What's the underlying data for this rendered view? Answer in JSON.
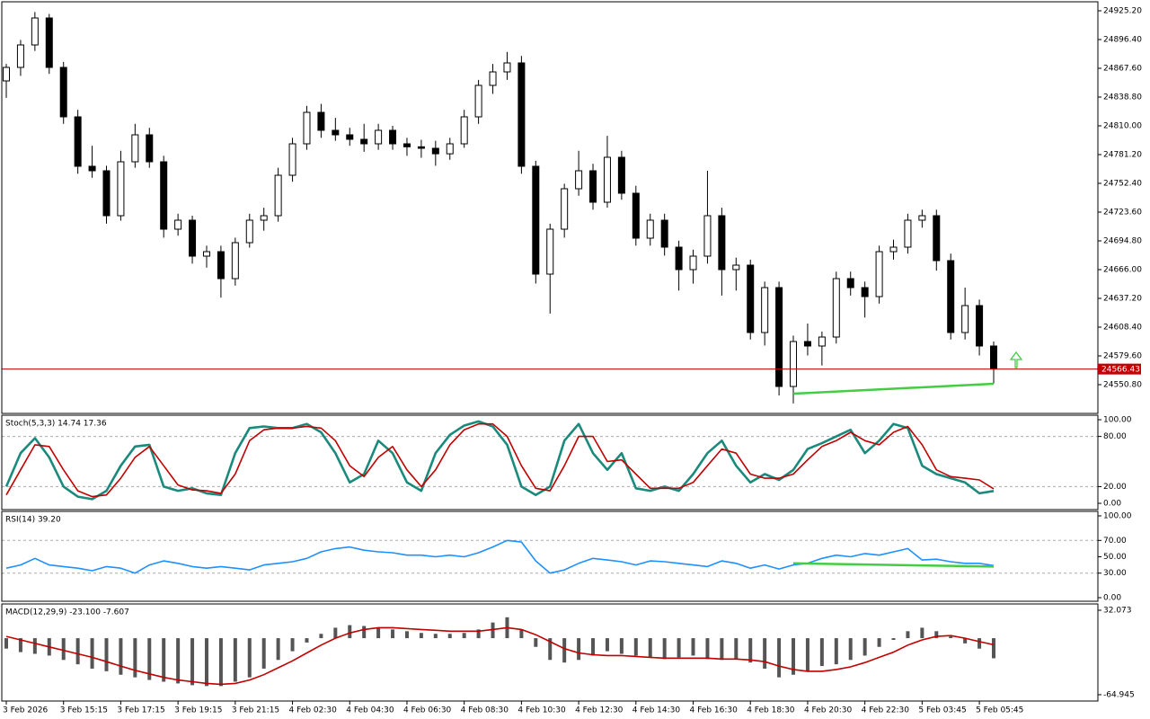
{
  "chart_data": [
    {
      "type": "candlestick",
      "categories": [
        "3 Feb 2026",
        null,
        null,
        null,
        "3 Feb 15:15",
        null,
        null,
        null,
        "3 Feb 17:15",
        null,
        null,
        null,
        "3 Feb 19:15",
        null,
        null,
        null,
        "3 Feb 21:15",
        null,
        null,
        null,
        "4 Feb 02:30",
        null,
        null,
        null,
        "4 Feb 04:30",
        null,
        null,
        null,
        "4 Feb 06:30",
        null,
        null,
        null,
        "4 Feb 08:30",
        null,
        null,
        null,
        "4 Feb 10:30",
        null,
        null,
        null,
        "4 Feb 12:30",
        null,
        null,
        null,
        "4 Feb 14:30",
        null,
        null,
        null,
        "4 Feb 16:30",
        null,
        null,
        null,
        "4 Feb 18:30",
        null,
        null,
        null,
        "4 Feb 20:30",
        null,
        null,
        null,
        "4 Feb 22:30",
        null,
        null,
        null,
        "5 Feb 03:45",
        null,
        null,
        null,
        "5 Feb 05:45",
        null
      ],
      "open": [
        24855.0,
        24868.5,
        24891.0,
        24918.0,
        24868.5,
        24819.0,
        24769.5,
        24765.0,
        24720.0,
        24774.0,
        24801.0,
        24774.0,
        24706.5,
        24715.5,
        24679.5,
        24684.0,
        24657.0,
        24693.0,
        24715.5,
        24720.0,
        24760.5,
        24792.0,
        24823.5,
        24805.5,
        24801.0,
        24796.5,
        24792.0,
        24805.5,
        24792.0,
        24789.0,
        24787.5,
        24782.0,
        24792.0,
        24819.0,
        24850.5,
        24864.0,
        24873.0,
        24769.5,
        24661.5,
        24706.5,
        24747.0,
        24765.0,
        24733.5,
        24778.5,
        24742.5,
        24697.5,
        24715.5,
        24688.5,
        24666.0,
        24679.5,
        24720.0,
        24666.0,
        24670.5,
        24603.0,
        24648.0,
        24549.0,
        24594.0,
        24589.5,
        24598.5,
        24657.0,
        24648.0,
        24639.0,
        24684.0,
        24688.5,
        24715.5,
        24720.0,
        24675.0,
        24603.0,
        24630.0,
        24589.5
      ],
      "high": [
        24872,
        24896,
        24924,
        24922,
        24874,
        24826,
        24790,
        24770,
        24785,
        24812,
        24808,
        24780,
        24722,
        24720,
        24690,
        24690,
        24698,
        24722,
        24728,
        24768,
        24798,
        24830,
        24832,
        24818,
        24808,
        24812,
        24812,
        24810,
        24798,
        24796,
        24795,
        24798,
        24826,
        24856,
        24872,
        24884,
        24880,
        24775,
        24712,
        24752,
        24785,
        24772,
        24800,
        24785,
        24750,
        24722,
        24722,
        24695,
        24686,
        24765,
        24728,
        24678,
        24676,
        24654,
        24654,
        24600,
        24612,
        24604,
        24664,
        24664,
        24654,
        24690,
        24696,
        24722,
        24726,
        24726,
        24682,
        24648,
        24636,
        24594
      ],
      "low": [
        24838,
        24860,
        24885,
        24862,
        24812,
        24762,
        24758,
        24712,
        24715,
        24768,
        24768,
        24698,
        24700,
        24672,
        24668,
        24638,
        24650,
        24688,
        24705,
        24714,
        24754,
        24786,
        24798,
        24795,
        24790,
        24784,
        24786,
        24786,
        24780,
        24778,
        24770,
        24776,
        24788,
        24812,
        24842,
        24856,
        24762,
        24652,
        24622,
        24698,
        24740,
        24726,
        24728,
        24736,
        24690,
        24690,
        24680,
        24645,
        24652,
        24672,
        24640,
        24645,
        24596,
        24590,
        24540,
        24532,
        24580,
        24570,
        24592,
        24640,
        24618,
        24632,
        24676,
        24682,
        24708,
        24665,
        24596,
        24596,
        24580,
        24552
      ],
      "close": [
        24868.5,
        24891.0,
        24918.0,
        24868.5,
        24819.0,
        24769.5,
        24765.0,
        24720.0,
        24774.0,
        24801.0,
        24774.0,
        24706.5,
        24715.5,
        24679.5,
        24684.0,
        24657.0,
        24693.0,
        24715.5,
        24720.0,
        24760.5,
        24792.0,
        24823.5,
        24805.5,
        24801.0,
        24796.5,
        24792.0,
        24805.5,
        24792.0,
        24789.0,
        24787.5,
        24782.0,
        24792.0,
        24819.0,
        24850.5,
        24864.0,
        24873.0,
        24769.5,
        24661.5,
        24706.5,
        24747.0,
        24765.0,
        24733.5,
        24778.5,
        24742.5,
        24697.5,
        24715.5,
        24688.5,
        24666.0,
        24679.5,
        24720.0,
        24666.0,
        24670.5,
        24603.0,
        24648.0,
        24549.0,
        24594.0,
        24589.5,
        24598.5,
        24657.0,
        24648.0,
        24639.0,
        24684.0,
        24688.5,
        24715.5,
        24720.0,
        24675.0,
        24603.0,
        24630.0,
        24589.5,
        24566.43
      ],
      "ylim": [
        24522.0,
        24934.2
      ],
      "yticks": [
        {
          "value": 24925.2,
          "label": "24925.20"
        },
        {
          "value": 24896.4,
          "label": "24896.40"
        },
        {
          "value": 24867.6,
          "label": "24867.60"
        },
        {
          "value": 24838.8,
          "label": "24838.80"
        },
        {
          "value": 24810,
          "label": "24810.00"
        },
        {
          "value": 24781.2,
          "label": "24781.20"
        },
        {
          "value": 24752.4,
          "label": "24752.40"
        },
        {
          "value": 24723.6,
          "label": "24723.60"
        },
        {
          "value": 24694.8,
          "label": "24694.80"
        },
        {
          "value": 24666,
          "label": "24666.00"
        },
        {
          "value": 24637.2,
          "label": "24637.20"
        },
        {
          "value": 24608.4,
          "label": "24608.40"
        },
        {
          "value": 24579.6,
          "label": "24579.60"
        },
        {
          "value": 24550.8,
          "label": "24550.80"
        }
      ],
      "current_price": 24566.43,
      "current_price_color": "#c00000",
      "trendline": {
        "x": [
          55,
          69
        ],
        "values": [
          24541.8,
          24551.7
        ],
        "color": "#44cc44"
      }
    },
    {
      "type": "line",
      "title": "Stoch(5,3,3) 14.74 17.36",
      "series": [
        {
          "color": "#1a8a7c",
          "values": [
            20,
            60,
            78,
            55,
            20,
            8,
            5,
            15,
            45,
            68,
            70,
            20,
            15,
            18,
            12,
            10,
            60,
            90,
            92,
            90,
            90,
            95,
            85,
            60,
            25,
            35,
            75,
            60,
            25,
            15,
            60,
            82,
            93,
            98,
            92,
            70,
            20,
            10,
            20,
            75,
            95,
            60,
            40,
            60,
            18,
            15,
            20,
            15,
            35,
            60,
            75,
            45,
            25,
            35,
            28,
            40,
            65,
            72,
            80,
            88,
            60,
            75,
            95,
            90,
            45,
            35,
            30,
            25,
            12,
            14.74
          ]
        },
        {
          "color": "#c00000",
          "values": [
            10,
            40,
            70,
            68,
            40,
            15,
            8,
            10,
            30,
            55,
            68,
            45,
            22,
            16,
            15,
            12,
            35,
            75,
            88,
            90,
            90,
            92,
            90,
            75,
            45,
            32,
            55,
            68,
            40,
            20,
            40,
            70,
            88,
            95,
            95,
            80,
            45,
            18,
            15,
            45,
            80,
            80,
            50,
            52,
            35,
            18,
            18,
            18,
            25,
            45,
            65,
            60,
            35,
            30,
            30,
            35,
            52,
            68,
            75,
            85,
            75,
            70,
            85,
            92,
            70,
            40,
            32,
            30,
            28,
            17.36
          ]
        }
      ],
      "ylim": [
        -7.5,
        105.4
      ],
      "yticks": [
        {
          "value": 100,
          "label": "100.00"
        },
        {
          "value": 80,
          "label": "80.00"
        },
        {
          "value": 20,
          "label": "20.00"
        },
        {
          "value": 0,
          "label": "0.00"
        }
      ],
      "levels": [
        80,
        20
      ]
    },
    {
      "type": "line",
      "title": "RSI(14) 39.20",
      "series": [
        {
          "color": "#1e90ff",
          "values": [
            36,
            40,
            48,
            40,
            38,
            36,
            33,
            38,
            36,
            30,
            40,
            45,
            42,
            38,
            36,
            38,
            36,
            34,
            40,
            42,
            44,
            48,
            56,
            60,
            62,
            58,
            56,
            55,
            52,
            52,
            50,
            52,
            50,
            55,
            62,
            70,
            68,
            45,
            30,
            34,
            42,
            48,
            46,
            44,
            40,
            45,
            44,
            42,
            40,
            38,
            45,
            42,
            36,
            40,
            35,
            40,
            42,
            48,
            52,
            50,
            54,
            52,
            56,
            60,
            46,
            47,
            44,
            42,
            42,
            39.2
          ]
        }
      ],
      "ylim": [
        -4.4,
        105.5
      ],
      "yticks": [
        {
          "value": 100,
          "label": "100.00"
        },
        {
          "value": 70,
          "label": "70.00"
        },
        {
          "value": 50,
          "label": "50.00"
        },
        {
          "value": 30,
          "label": "30.00"
        },
        {
          "value": 0,
          "label": "0.00"
        }
      ],
      "levels": [
        70,
        30
      ],
      "trendline": {
        "x": [
          55,
          69
        ],
        "values": [
          42,
          38
        ],
        "color": "#44cc44"
      }
    },
    {
      "type": "macd",
      "title": "MACD(12,29,9) -23.100 -7.607",
      "histogram": {
        "color": "#555555",
        "values": [
          -12,
          -16,
          -18,
          -20,
          -25,
          -30,
          -35,
          -38,
          -42,
          -45,
          -48,
          -50,
          -52,
          -54,
          -55,
          -55,
          -50,
          -45,
          -35,
          -25,
          -15,
          -5,
          5,
          12,
          15,
          14,
          12,
          10,
          8,
          6,
          5,
          5,
          6,
          10,
          18,
          24,
          10,
          -10,
          -25,
          -28,
          -25,
          -20,
          -15,
          -18,
          -20,
          -22,
          -24,
          -22,
          -20,
          -24,
          -25,
          -24,
          -28,
          -35,
          -45,
          -42,
          -38,
          -32,
          -30,
          -25,
          -20,
          -10,
          -2,
          8,
          12,
          8,
          2,
          -6,
          -12,
          -23.1
        ]
      },
      "signal": {
        "color": "#c00000",
        "values": [
          2,
          -2,
          -6,
          -10,
          -14,
          -18,
          -22,
          -27,
          -32,
          -37,
          -41,
          -45,
          -48,
          -50,
          -52,
          -53,
          -52,
          -48,
          -42,
          -34,
          -26,
          -17,
          -8,
          0,
          6,
          10,
          12,
          12,
          11,
          10,
          9,
          8,
          8,
          8,
          10,
          12,
          10,
          4,
          -4,
          -12,
          -17,
          -19,
          -20,
          -20,
          -21,
          -22,
          -23,
          -23,
          -23,
          -23,
          -24,
          -24,
          -25,
          -27,
          -32,
          -36,
          -38,
          -38,
          -36,
          -33,
          -28,
          -22,
          -16,
          -8,
          -2,
          2,
          3,
          0,
          -4,
          -7.607
        ]
      },
      "ylim": [
        -72.2,
        39.3
      ],
      "yticks": [
        32.073,
        -64.945
      ]
    }
  ]
}
